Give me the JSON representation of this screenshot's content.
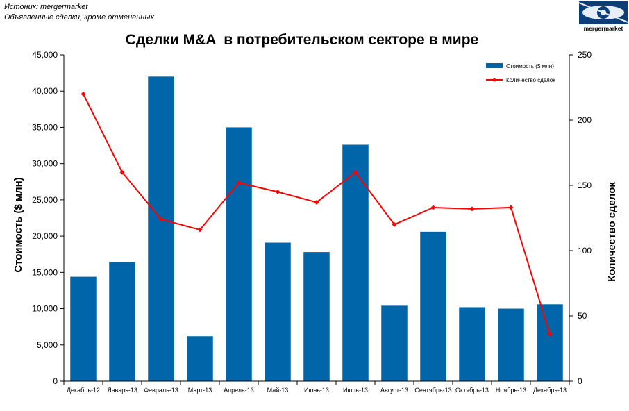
{
  "source": {
    "line1": "Истоник: mergermarket",
    "line2": "Объявленные сделки, кроме отмененных"
  },
  "logo": {
    "text": "mergermarket",
    "colors": {
      "dark": "#0a3f7a",
      "light": "#e8eef6"
    }
  },
  "colors": {
    "bar": "#0065a9",
    "line": "#ff0000"
  },
  "chart_data": {
    "type": "bar+line",
    "title": "Сделки M&A  в потребительском секторе в мире",
    "categories": [
      "Декабрь-12",
      "Январь-13",
      "Февраль-13",
      "Март-13",
      "Апрель-13",
      "Май-13",
      "Июнь-13",
      "Июль-13",
      "Август-13",
      "Сентябрь-13",
      "Октябрь-13",
      "Ноябрь-13",
      "Декабрь-13"
    ],
    "series": [
      {
        "name": "Стоимость ($ млн)",
        "type": "bar",
        "axis": "left",
        "values": [
          14400,
          16400,
          42000,
          6200,
          35000,
          19100,
          17800,
          32600,
          10400,
          20600,
          10200,
          10000,
          10600
        ]
      },
      {
        "name": "Количество сделок",
        "type": "line",
        "axis": "right",
        "values": [
          220,
          160,
          124,
          116,
          152,
          145,
          137,
          160,
          120,
          133,
          132,
          133,
          36
        ]
      }
    ],
    "ylabel": "Стоимость ($ млн)",
    "y2label": "Количество сделок",
    "ylim": [
      0,
      45000
    ],
    "y2lim": [
      0,
      250
    ],
    "yticks": [
      "0",
      "5,000",
      "10,000",
      "15,000",
      "20,000",
      "25,000",
      "30,000",
      "35,000",
      "40,000",
      "45,000"
    ],
    "y2ticks": [
      "0",
      "50",
      "100",
      "150",
      "200",
      "250"
    ],
    "legend_position": "top-right",
    "grid": false
  }
}
